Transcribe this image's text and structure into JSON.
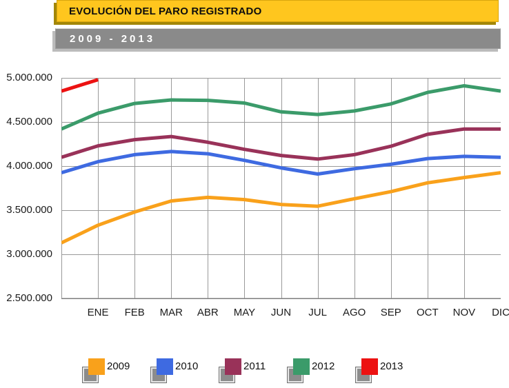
{
  "header": {
    "title": "EVOLUCIÓN DEL PARO REGISTRADO",
    "subtitle": "2009 - 2013"
  },
  "colors": {
    "title_bar_bg": "#FFC61E",
    "subtitle_bar_bg": "#8A8A8A",
    "grid_line": "#999999",
    "axis_line": "#7D7D7D",
    "series_2009": "#F9A11B",
    "series_2010": "#3E6AE1",
    "series_2011": "#993259",
    "series_2012": "#3B9B6A",
    "series_2013": "#EC1212"
  },
  "chart_data": {
    "type": "line",
    "title": "EVOLUCIÓN DEL PARO REGISTRADO",
    "subtitle": "2009 - 2013",
    "categories": [
      "ENE",
      "FEB",
      "MAR",
      "ABR",
      "MAY",
      "JUN",
      "JUL",
      "AGO",
      "SEP",
      "OCT",
      "NOV",
      "DIC"
    ],
    "ylabel": "",
    "xlabel": "",
    "ylim": [
      2500000,
      5000000
    ],
    "y_tick_labels": [
      "5.000.000",
      "4.500.000",
      "4.000.000",
      "3.500.000",
      "3.000.000",
      "2.500.000"
    ],
    "grid": true,
    "legend_position": "bottom",
    "note": "Each line begins on the y-axis at the previous December value (start_value), then ENE–DIC fall on successive gridlines.",
    "series": [
      {
        "name": "2009",
        "color": "#F9A11B",
        "start_value": 3130000,
        "values": [
          3330000,
          3480000,
          3605000,
          3645000,
          3620000,
          3565000,
          3545000,
          3630000,
          3710000,
          3810000,
          3870000,
          3925000
        ]
      },
      {
        "name": "2010",
        "color": "#3E6AE1",
        "start_value": 3925000,
        "values": [
          4050000,
          4130000,
          4165000,
          4140000,
          4065000,
          3980000,
          3910000,
          3970000,
          4020000,
          4085000,
          4110000,
          4100000
        ]
      },
      {
        "name": "2011",
        "color": "#993259",
        "start_value": 4100000,
        "values": [
          4230000,
          4300000,
          4335000,
          4270000,
          4190000,
          4120000,
          4080000,
          4130000,
          4225000,
          4360000,
          4420000,
          4420000
        ]
      },
      {
        "name": "2012",
        "color": "#3B9B6A",
        "start_value": 4420000,
        "values": [
          4600000,
          4710000,
          4750000,
          4745000,
          4715000,
          4615000,
          4585000,
          4625000,
          4705000,
          4835000,
          4910000,
          4850000
        ]
      },
      {
        "name": "2013",
        "color": "#EC1212",
        "start_value": 4850000,
        "values": [
          4980000,
          null,
          null,
          null,
          null,
          null,
          null,
          null,
          null,
          null,
          null,
          null
        ]
      }
    ]
  },
  "legend": {
    "items": [
      {
        "label": "2009",
        "color": "#F9A11B"
      },
      {
        "label": "2010",
        "color": "#3E6AE1"
      },
      {
        "label": "2011",
        "color": "#993259"
      },
      {
        "label": "2012",
        "color": "#3B9B6A"
      },
      {
        "label": "2013",
        "color": "#EC1212"
      }
    ]
  }
}
